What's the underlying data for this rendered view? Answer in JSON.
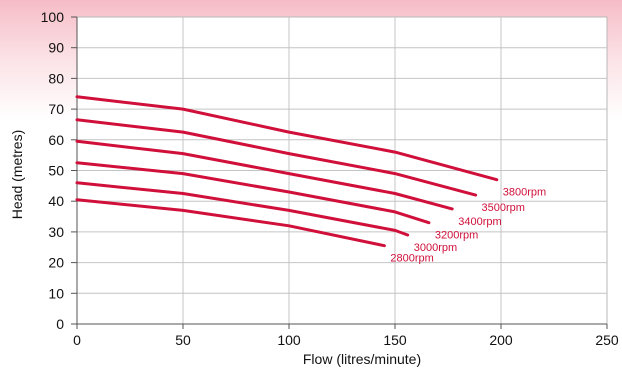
{
  "chart_data": {
    "type": "line",
    "title": "",
    "xlabel": "Flow (litres/minute)",
    "ylabel": "Head (metres)",
    "xlim": [
      0,
      250
    ],
    "ylim": [
      0,
      100
    ],
    "x_ticks": [
      0,
      50,
      100,
      150,
      200,
      250
    ],
    "y_ticks": [
      0,
      10,
      20,
      30,
      40,
      50,
      60,
      70,
      80,
      90,
      100
    ],
    "grid": true,
    "line_color": "#d0103a",
    "series": [
      {
        "name": "3800rpm",
        "x": [
          0,
          50,
          100,
          150,
          198
        ],
        "y": [
          74,
          70,
          62.5,
          56,
          47
        ]
      },
      {
        "name": "3500rpm",
        "x": [
          0,
          50,
          100,
          150,
          188
        ],
        "y": [
          66.5,
          62.5,
          55.5,
          49,
          42
        ]
      },
      {
        "name": "3400rpm",
        "x": [
          0,
          50,
          100,
          150,
          177
        ],
        "y": [
          59.5,
          55.5,
          49,
          42.5,
          37.5
        ]
      },
      {
        "name": "3200rpm",
        "x": [
          0,
          50,
          100,
          150,
          166
        ],
        "y": [
          52.5,
          49,
          43,
          36.5,
          33
        ]
      },
      {
        "name": "3000rpm",
        "x": [
          0,
          50,
          100,
          150,
          156
        ],
        "y": [
          46,
          42.5,
          37,
          30.5,
          29
        ]
      },
      {
        "name": "2800rpm",
        "x": [
          0,
          50,
          100,
          145
        ],
        "y": [
          40.5,
          37,
          32,
          25.5
        ]
      }
    ]
  }
}
